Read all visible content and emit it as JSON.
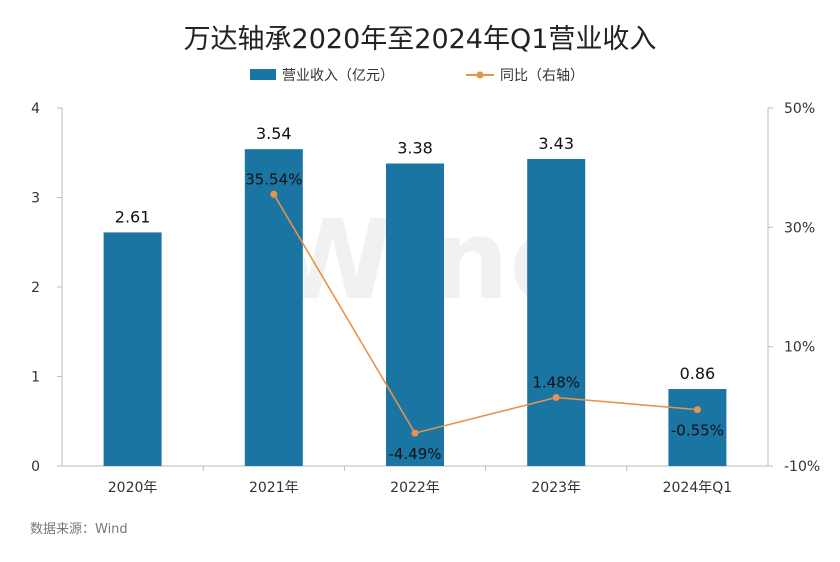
{
  "chart_data": {
    "type": "bar+line",
    "title": "万达轴承2020年至2024年Q1营业收入",
    "categories": [
      "2020年",
      "2021年",
      "2022年",
      "2023年",
      "2024年Q1"
    ],
    "series": [
      {
        "name": "营业收入（亿元）",
        "type": "bar",
        "axis": "left",
        "values": [
          2.61,
          3.54,
          3.38,
          3.43,
          0.86
        ],
        "labels": [
          "2.61",
          "3.54",
          "3.38",
          "3.43",
          "0.86"
        ],
        "color": "#1a75a3"
      },
      {
        "name": "同比（右轴）",
        "type": "line",
        "axis": "right",
        "values": [
          null,
          35.54,
          -4.49,
          1.48,
          -0.55
        ],
        "labels": [
          "",
          "35.54%",
          "-4.49%",
          "1.48%",
          "-0.55%"
        ],
        "color": "#e8924a"
      }
    ],
    "left_axis": {
      "ylim": [
        0,
        4
      ],
      "ticks": [
        "0",
        "1",
        "2",
        "3",
        "4"
      ],
      "tick_values": [
        0,
        1,
        2,
        3,
        4
      ]
    },
    "right_axis": {
      "ylim": [
        -10,
        50
      ],
      "ticks": [
        "-10%",
        "10%",
        "30%",
        "50%"
      ],
      "tick_values": [
        -10,
        10,
        30,
        50
      ]
    },
    "legend_position": "top-center",
    "source": "数据来源：Wind",
    "watermark": "Wind"
  }
}
